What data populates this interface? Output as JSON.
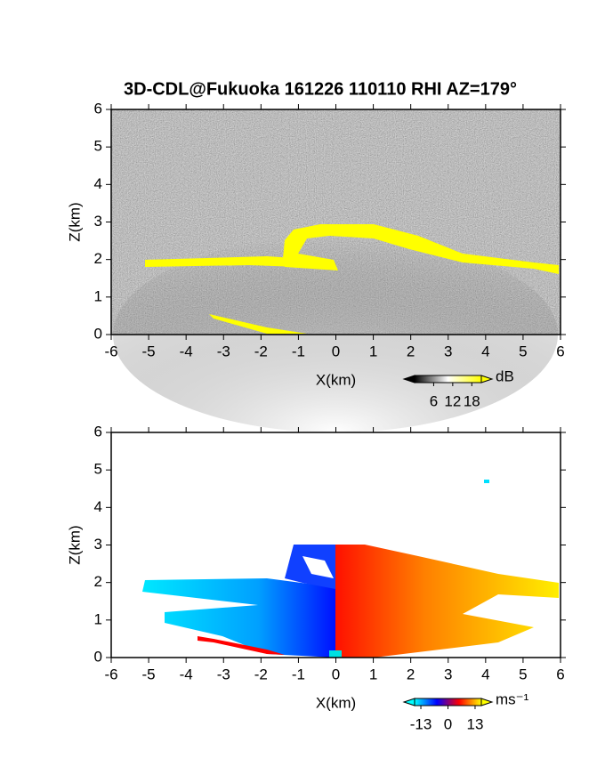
{
  "chart_data": [
    {
      "type": "heatmap",
      "title": "3D-CDL@Fukuoka 161226 110110 RHI AZ=179°",
      "xlabel": "X(km)",
      "ylabel": "Z(km)",
      "xlim": [
        -6,
        6
      ],
      "ylim": [
        0,
        6
      ],
      "xticks": [
        -6,
        -5,
        -4,
        -3,
        -2,
        -1,
        0,
        1,
        2,
        3,
        4,
        5,
        6
      ],
      "yticks": [
        0,
        1,
        2,
        3,
        4,
        5,
        6
      ],
      "colorbar": {
        "label": "dB",
        "lim": [
          0,
          21
        ],
        "ticks": [
          6,
          12,
          18
        ],
        "colors": [
          "#000000",
          "#ffffff",
          "#ffff00"
        ]
      }
    },
    {
      "type": "heatmap",
      "xlabel": "X(km)",
      "ylabel": "Z(km)",
      "xlim": [
        -6,
        6
      ],
      "ylim": [
        0,
        6
      ],
      "xticks": [
        -6,
        -5,
        -4,
        -3,
        -2,
        -1,
        0,
        1,
        2,
        3,
        4,
        5,
        6
      ],
      "yticks": [
        0,
        1,
        2,
        3,
        4,
        5,
        6
      ],
      "colorbar": {
        "label": "ms⁻¹",
        "lim": [
          -16,
          16
        ],
        "ticks": [
          -13,
          0,
          13
        ],
        "colors": [
          "#00ffff",
          "#0000ff",
          "#ff0000",
          "#ffff00"
        ]
      }
    }
  ]
}
